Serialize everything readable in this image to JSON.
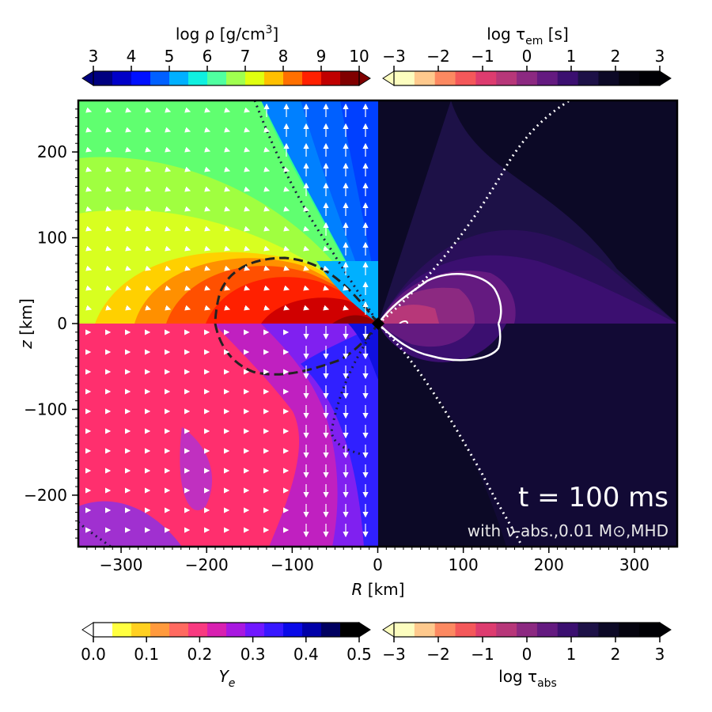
{
  "chart_data": {
    "type": "heatmap",
    "xlabel_var": "R",
    "xlabel_unit": "[km]",
    "ylabel_var": "z",
    "ylabel_unit": "[km]",
    "xlim": [
      -350,
      350
    ],
    "ylim": [
      -260,
      260
    ],
    "xticks": [
      -300,
      -200,
      -100,
      0,
      100,
      200,
      300
    ],
    "yticks": [
      -200,
      -100,
      0,
      100,
      200
    ],
    "xtick_labels": [
      "−300",
      "−200",
      "−100",
      "0",
      "100",
      "200",
      "300"
    ],
    "ytick_labels": [
      "−200",
      "−100",
      "0",
      "100",
      "200"
    ],
    "annotation_time": "t = 100 ms",
    "annotation_sub": "with ν-abs.,0.01 M⊙,MHD",
    "quadrants": {
      "upper_left": "log ρ",
      "upper_right": "log τ_em",
      "lower_left": "Y_e",
      "lower_right": "log τ_abs"
    },
    "colorbars": [
      {
        "id": "rho",
        "label_pre": "log ρ [g/cm",
        "label_sup": "3",
        "label_post": "]",
        "ticks": [
          "3",
          "4",
          "5",
          "6",
          "7",
          "8",
          "9",
          "10"
        ],
        "range": [
          3,
          10
        ],
        "colormap": "jet"
      },
      {
        "id": "tau_em",
        "label_pre": "log τ",
        "label_sub": "em",
        "label_post": " [s]",
        "ticks": [
          "−3",
          "−2",
          "−1",
          "0",
          "1",
          "2",
          "3"
        ],
        "range": [
          -3,
          3
        ],
        "colormap": "magma_r"
      },
      {
        "id": "ye",
        "label_italic": "Y",
        "label_sub": "e",
        "ticks": [
          "0.0",
          "0.1",
          "0.2",
          "0.3",
          "0.4",
          "0.5"
        ],
        "range": [
          0,
          0.5
        ],
        "colormap": "gnuplot2_r"
      },
      {
        "id": "tau_abs",
        "label_pre": "log τ",
        "label_sub": "abs",
        "ticks": [
          "−3",
          "−2",
          "−1",
          "0",
          "1",
          "2",
          "3"
        ],
        "range": [
          -3,
          3
        ],
        "colormap": "magma_r"
      }
    ],
    "colors": {
      "jet": [
        "#000080",
        "#0000c8",
        "#0010ff",
        "#0060ff",
        "#00b0ff",
        "#10f0e0",
        "#50ffa0",
        "#a0ff50",
        "#e0ff10",
        "#ffc000",
        "#ff7000",
        "#ff2000",
        "#c00000",
        "#800000"
      ],
      "magma_r": [
        "#fcfdbf",
        "#fec98d",
        "#fc8961",
        "#f4585a",
        "#dd3c6f",
        "#b73779",
        "#8c2981",
        "#641a80",
        "#3b0f70",
        "#1d1147",
        "#0c0926",
        "#05040f",
        "#000004"
      ],
      "gnuplot2_r": [
        "#ffffff",
        "#ffff40",
        "#ffd020",
        "#ff9a3d",
        "#ff6a60",
        "#f83a80",
        "#d820b0",
        "#a818e0",
        "#7018ff",
        "#3818ff",
        "#0a0ae8",
        "#0000a8",
        "#000060",
        "#000000"
      ]
    }
  }
}
